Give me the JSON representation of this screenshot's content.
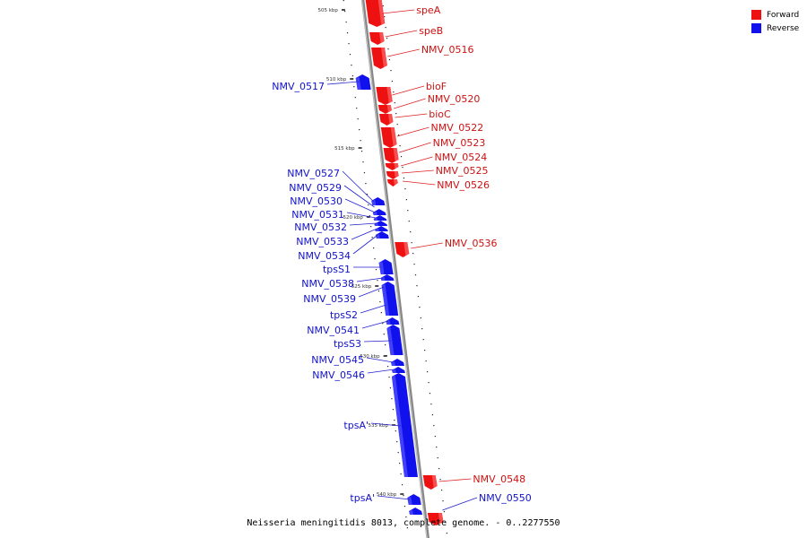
{
  "colors": {
    "forward": "#ee1111",
    "reverse": "#1111ee",
    "axis": "#999999",
    "leader_f": "#dd2222",
    "leader_r": "#2222cc"
  },
  "legend": [
    {
      "label": "Forward",
      "color": "#ee1111"
    },
    {
      "label": "Reverse",
      "color": "#1111ee"
    }
  ],
  "caption": "Neisseria meningitidis 8013, complete genome. - 0..2277550",
  "ticks": [
    "505 kbp",
    "510 kbp",
    "515 kbp",
    "520 kbp",
    "525 kbp",
    "530 kbp",
    "535 kbp",
    "540 kbp"
  ],
  "forward_genes": [
    "speA",
    "speB",
    "NMV_0516",
    "bioF",
    "NMV_0520",
    "bioC",
    "NMV_0522",
    "NMV_0523",
    "NMV_0524",
    "NMV_0525",
    "NMV_0526",
    "NMV_0536",
    "NMV_0548"
  ],
  "reverse_genes": [
    "NMV_0517",
    "NMV_0527",
    "NMV_0529",
    "NMV_0530",
    "NMV_0531",
    "NMV_0532",
    "NMV_0533",
    "NMV_0534",
    "tpsS1",
    "NMV_0538",
    "NMV_0539",
    "tpsS2",
    "NMV_0541",
    "tpsS3",
    "NMV_0545",
    "NMV_0546",
    "tpsA'",
    "NMV_0550",
    "tpsA'"
  ]
}
